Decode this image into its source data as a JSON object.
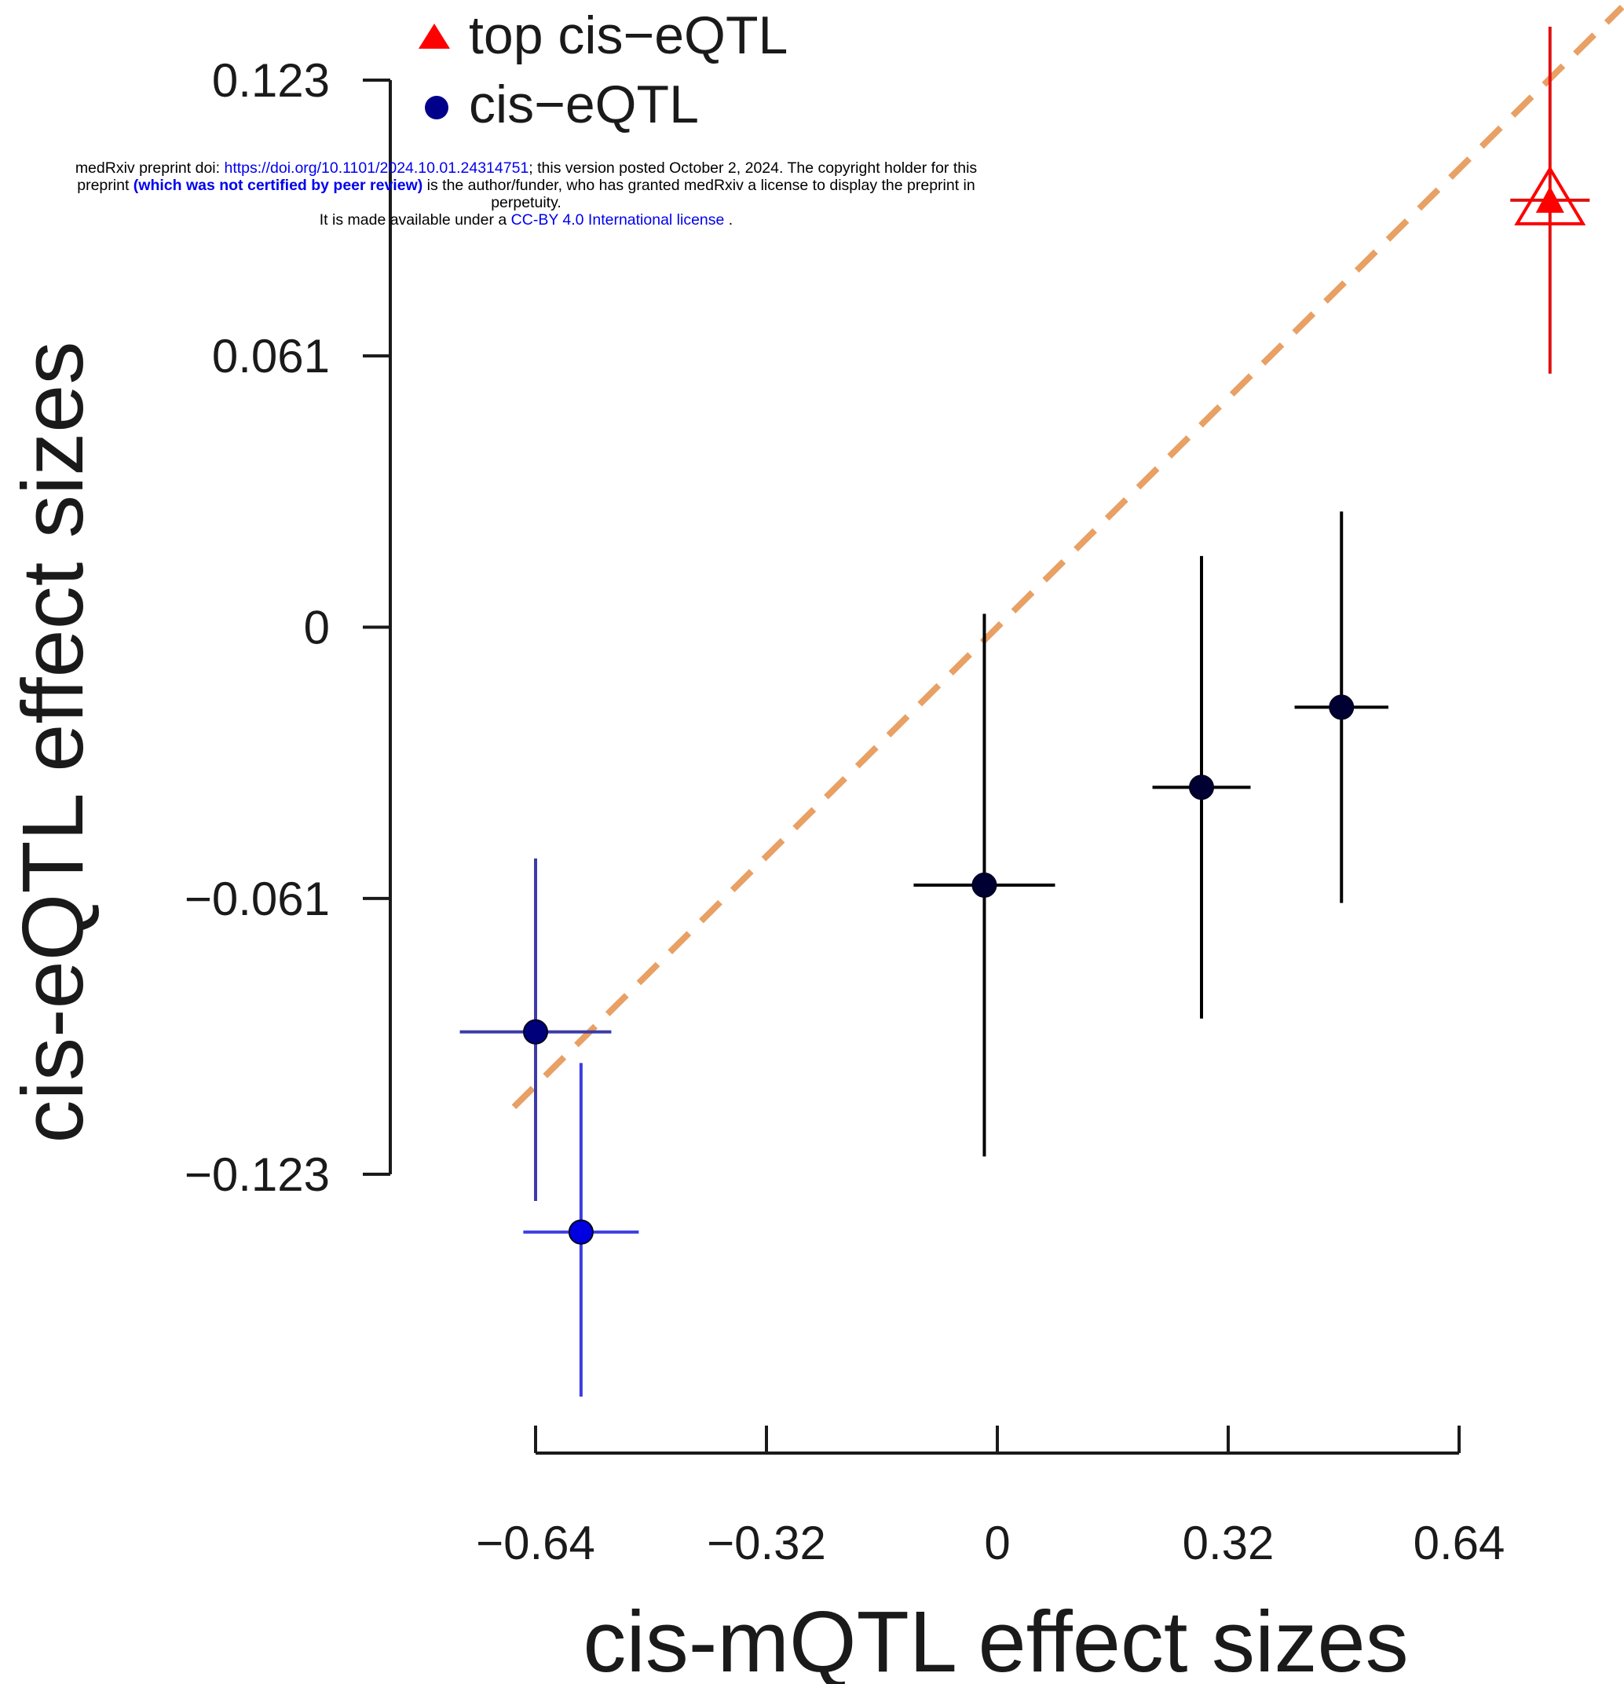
{
  "banner": {
    "line1_pre": "medRxiv preprint doi: ",
    "doi_link": "https://doi.org/10.1101/2024.10.01.24314751",
    "line1_post": "; this version posted October 2, 2024. The copyright holder for this",
    "line2_pre": "preprint ",
    "line2_bold": "(which was not certified by peer review)",
    "line2_post": " is the author/funder, who has granted medRxiv a license to display the preprint in",
    "line3": "perpetuity.",
    "line4_pre": "It is made available under a ",
    "license_link": "CC-BY 4.0 International license",
    "line4_post": " ."
  },
  "chart_data": {
    "type": "scatter",
    "xlabel": "cis-mQTL effect sizes",
    "ylabel": "cis-eQTL effect sizes",
    "x_ticks": [
      -0.64,
      -0.32,
      0,
      0.32,
      0.64
    ],
    "x_tick_labels": [
      "−0.64",
      "−0.32",
      "0",
      "0.32",
      "0.64"
    ],
    "y_ticks": [
      -0.123,
      -0.061,
      0,
      0.061,
      0.123
    ],
    "y_tick_labels": [
      "−0.123",
      "−0.061",
      "0",
      "0.061",
      "0.123"
    ],
    "xlim": [
      -0.64,
      0.64
    ],
    "ylim": [
      -0.123,
      0.123
    ],
    "grid": false,
    "legend_position": "top",
    "legend": [
      {
        "label": "top cis−eQTL",
        "marker": "triangle",
        "color": "#ff0000"
      },
      {
        "label": "cis−eQTL",
        "marker": "circle",
        "color": "#00008b"
      }
    ],
    "series": [
      {
        "name": "cis−eQTL",
        "points": [
          {
            "x": -0.64,
            "y": -0.091,
            "x_err": 0.105,
            "y_lo": -0.129,
            "y_hi": -0.052,
            "color": "#00007a",
            "bar_color": "#3c3ca8"
          },
          {
            "x": -0.577,
            "y": -0.136,
            "x_err": 0.08,
            "y_lo": -0.173,
            "y_hi": -0.098,
            "color": "#0000e0",
            "bar_color": "#3c3ce0"
          },
          {
            "x": -0.018,
            "y": -0.058,
            "x_err": 0.098,
            "y_lo": -0.119,
            "y_hi": 0.003,
            "color": "#000033",
            "bar_color": "#000000"
          },
          {
            "x": 0.283,
            "y": -0.036,
            "x_err": 0.068,
            "y_lo": -0.088,
            "y_hi": 0.016,
            "color": "#000033",
            "bar_color": "#000000"
          },
          {
            "x": 0.477,
            "y": -0.018,
            "x_err": 0.065,
            "y_lo": -0.062,
            "y_hi": 0.026,
            "color": "#000033",
            "bar_color": "#000000"
          }
        ]
      },
      {
        "name": "top cis−eQTL",
        "points": [
          {
            "x": 0.766,
            "y": 0.096,
            "x_err": 0.055,
            "y_lo": 0.057,
            "y_hi": 0.135,
            "color": "#ff0000",
            "bar_color": "#e01010"
          }
        ]
      }
    ],
    "fit_line": {
      "slope": 0.161,
      "intercept": 0.0,
      "color": "#e8a064",
      "style": "dashed"
    }
  }
}
